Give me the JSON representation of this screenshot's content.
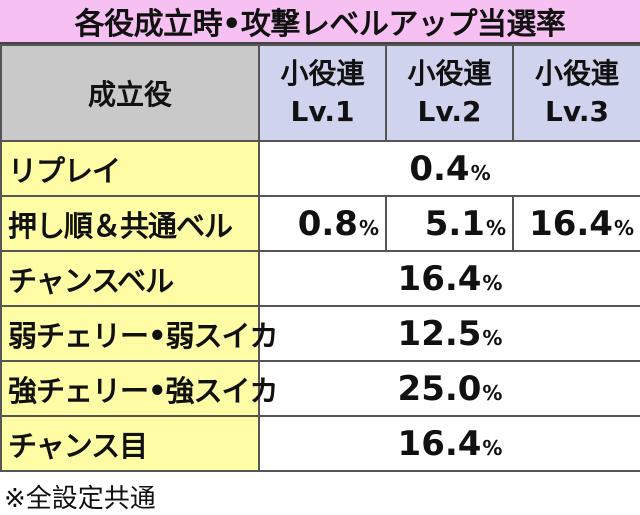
{
  "title": "各役成立時•攻撃レベルアップ当選率",
  "header": {
    "role_label": "成立役",
    "columns": [
      {
        "line1": "小役連",
        "line2": "Lv.1"
      },
      {
        "line1": "小役連",
        "line2": "Lv.2"
      },
      {
        "line1": "小役連",
        "line2": "Lv.3"
      }
    ]
  },
  "rows": [
    {
      "label": "リプレイ",
      "merged": true,
      "value": "0.4",
      "unit": "%"
    },
    {
      "label": "押し順＆共通ベル",
      "merged": false,
      "values": [
        "0.8",
        "5.1",
        "16.4"
      ],
      "unit": "%"
    },
    {
      "label": "チャンスベル",
      "merged": true,
      "value": "16.4",
      "unit": "%"
    },
    {
      "label": "弱チェリー•弱スイカ",
      "merged": true,
      "value": "12.5",
      "unit": "%"
    },
    {
      "label": "強チェリー•強スイカ",
      "merged": true,
      "value": "25.0",
      "unit": "%"
    },
    {
      "label": "チャンス目",
      "merged": true,
      "value": "16.4",
      "unit": "%"
    }
  ],
  "footnote": "※全設定共通"
}
